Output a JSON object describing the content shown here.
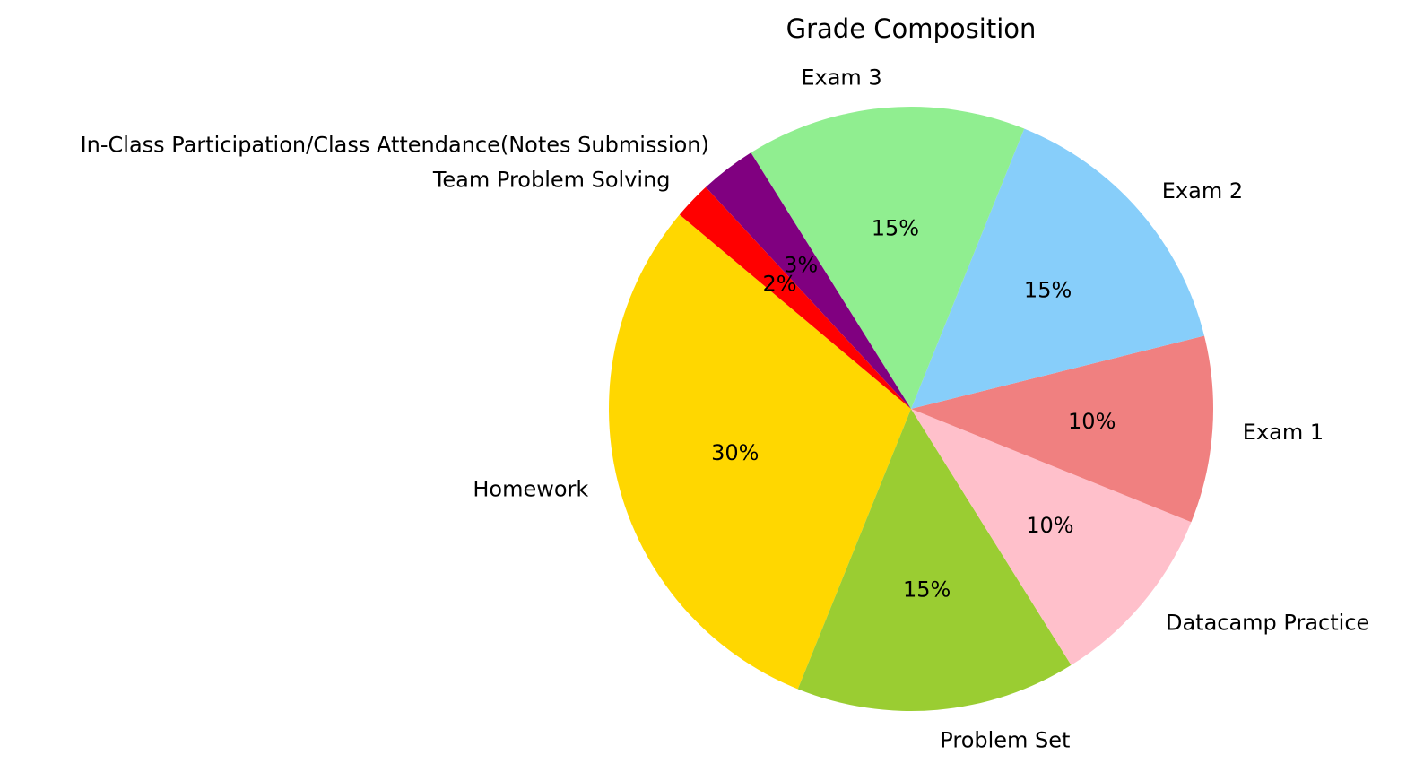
{
  "chart_data": {
    "type": "pie",
    "title": "Grade Composition",
    "start_angle_deg": 140,
    "direction": "counterclockwise",
    "slices": [
      {
        "label": "Homework",
        "value": 30,
        "pct_label": "30%",
        "color": "#ffd700"
      },
      {
        "label": "Problem Set",
        "value": 15,
        "pct_label": "15%",
        "color": "#9acd32"
      },
      {
        "label": "Datacamp Practice",
        "value": 10,
        "pct_label": "10%",
        "color": "#ffc0cb"
      },
      {
        "label": "Exam 1",
        "value": 10,
        "pct_label": "10%",
        "color": "#f08080"
      },
      {
        "label": "Exam 2",
        "value": 15,
        "pct_label": "15%",
        "color": "#87cefa"
      },
      {
        "label": "Exam 3",
        "value": 15,
        "pct_label": "15%",
        "color": "#90ee90"
      },
      {
        "label": "In-Class Participation/Class Attendance(Notes Submission)",
        "value": 3,
        "pct_label": "3%",
        "color": "#800080"
      },
      {
        "label": "Team Problem Solving",
        "value": 2,
        "pct_label": "2%",
        "color": "#ff0000"
      }
    ]
  }
}
